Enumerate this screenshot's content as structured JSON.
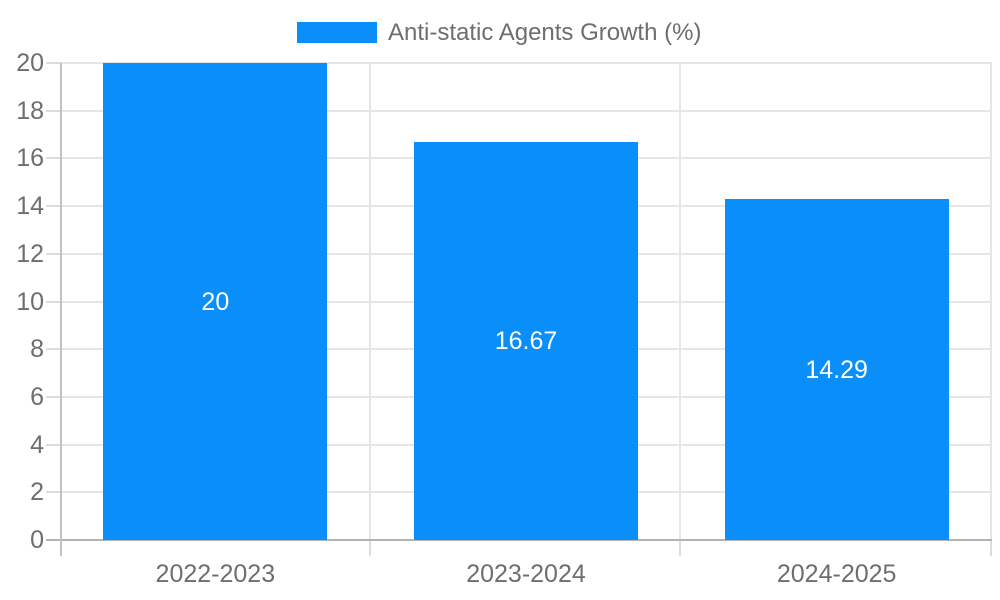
{
  "legend": {
    "label": "Anti-static Agents Growth (%)"
  },
  "chart_data": {
    "type": "bar",
    "title": "",
    "series_label": "Anti-static Agents Growth (%)",
    "categories": [
      "2022-2023",
      "2023-2024",
      "2024-2025"
    ],
    "values": [
      20,
      16.67,
      14.29
    ],
    "value_labels": [
      "20",
      "16.67",
      "14.29"
    ],
    "xlabel": "",
    "ylabel": "",
    "ylim": [
      0,
      20
    ],
    "ytick_step": 2,
    "yticks": [
      "0",
      "2",
      "4",
      "6",
      "8",
      "10",
      "12",
      "14",
      "16",
      "18",
      "20"
    ],
    "grid": "on",
    "legend_position": "top-center",
    "colors": {
      "bar": "#0a8ef9",
      "gridline": "#e6e6e6",
      "axis_zero_line": "#b3b3b3",
      "axis_left_line": "#c2c2c2",
      "tick_mark": "#dcdcdc",
      "axis_text": "#6e6e6e",
      "data_label_text": "#ffffff",
      "legend_text": "#6e6e6e"
    }
  }
}
